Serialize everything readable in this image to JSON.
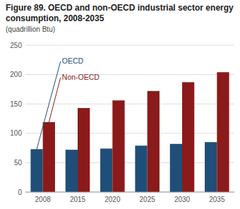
{
  "chart_data": {
    "type": "bar",
    "title": "Figure 89. OECD and non-OECD industrial sector energy consumption, 2008-2035",
    "subtitle": "(quadrillion Btu)",
    "categories": [
      "2008",
      "2015",
      "2020",
      "2025",
      "2030",
      "2035"
    ],
    "series": [
      {
        "name": "OECD",
        "color": "#1f4e79",
        "values": [
          73,
          72,
          74,
          79,
          82,
          85
        ]
      },
      {
        "name": "Non-OECD",
        "color": "#8b1a1a",
        "values": [
          119,
          143,
          156,
          172,
          187,
          204
        ]
      }
    ],
    "ylim": [
      0,
      250
    ],
    "yticks": [
      0,
      50,
      100,
      150,
      200,
      250
    ],
    "grid": true
  }
}
